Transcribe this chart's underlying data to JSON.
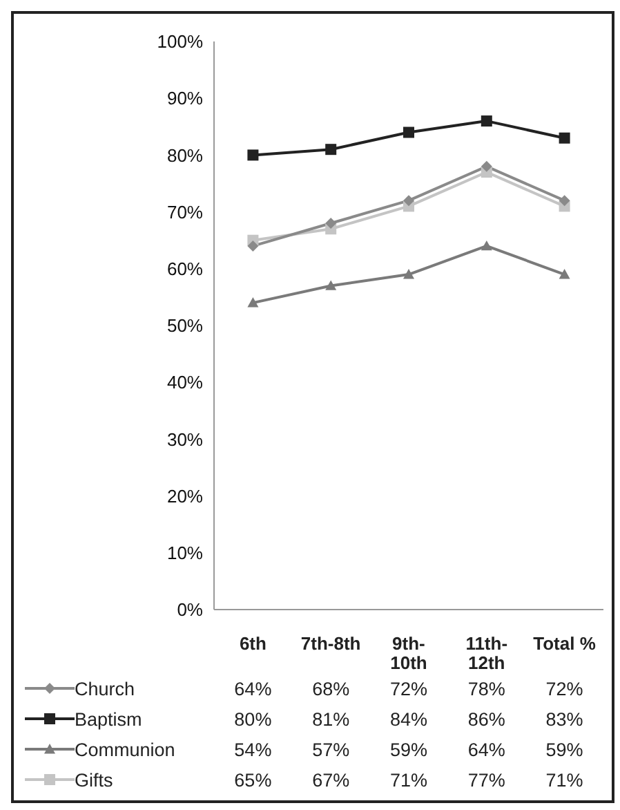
{
  "chart_data": {
    "type": "line",
    "categories": [
      "6th",
      "7th-8th",
      "9th-10th",
      "11th-12th",
      "Total %"
    ],
    "series": [
      {
        "name": "Church",
        "color": "#8a8a8a",
        "marker": "diamond",
        "values": [
          64,
          68,
          72,
          78,
          72
        ]
      },
      {
        "name": "Baptism",
        "color": "#222222",
        "marker": "square",
        "values": [
          80,
          81,
          84,
          86,
          83
        ]
      },
      {
        "name": "Communion",
        "color": "#7a7a7a",
        "marker": "triangle",
        "values": [
          54,
          57,
          59,
          64,
          59
        ]
      },
      {
        "name": "Gifts",
        "color": "#c4c4c4",
        "marker": "square",
        "values": [
          65,
          67,
          71,
          77,
          71
        ]
      }
    ],
    "ylim": [
      0,
      100
    ],
    "yticks": [
      {
        "value": 0,
        "label": "0%"
      },
      {
        "value": 10,
        "label": "10%"
      },
      {
        "value": 20,
        "label": "20%"
      },
      {
        "value": 30,
        "label": "30%"
      },
      {
        "value": 40,
        "label": "40%"
      },
      {
        "value": 50,
        "label": "50%"
      },
      {
        "value": 60,
        "label": "60%"
      },
      {
        "value": 70,
        "label": "70%"
      },
      {
        "value": 80,
        "label": "80%"
      },
      {
        "value": 90,
        "label": "90%"
      },
      {
        "value": 100,
        "label": "100%"
      }
    ],
    "grid": false,
    "legend": "bottom left",
    "value_labels": [
      [
        "64%",
        "68%",
        "72%",
        "78%",
        "72%"
      ],
      [
        "80%",
        "81%",
        "84%",
        "86%",
        "83%"
      ],
      [
        "54%",
        "57%",
        "59%",
        "64%",
        "59%"
      ],
      [
        "65%",
        "67%",
        "71%",
        "77%",
        "71%"
      ]
    ]
  }
}
